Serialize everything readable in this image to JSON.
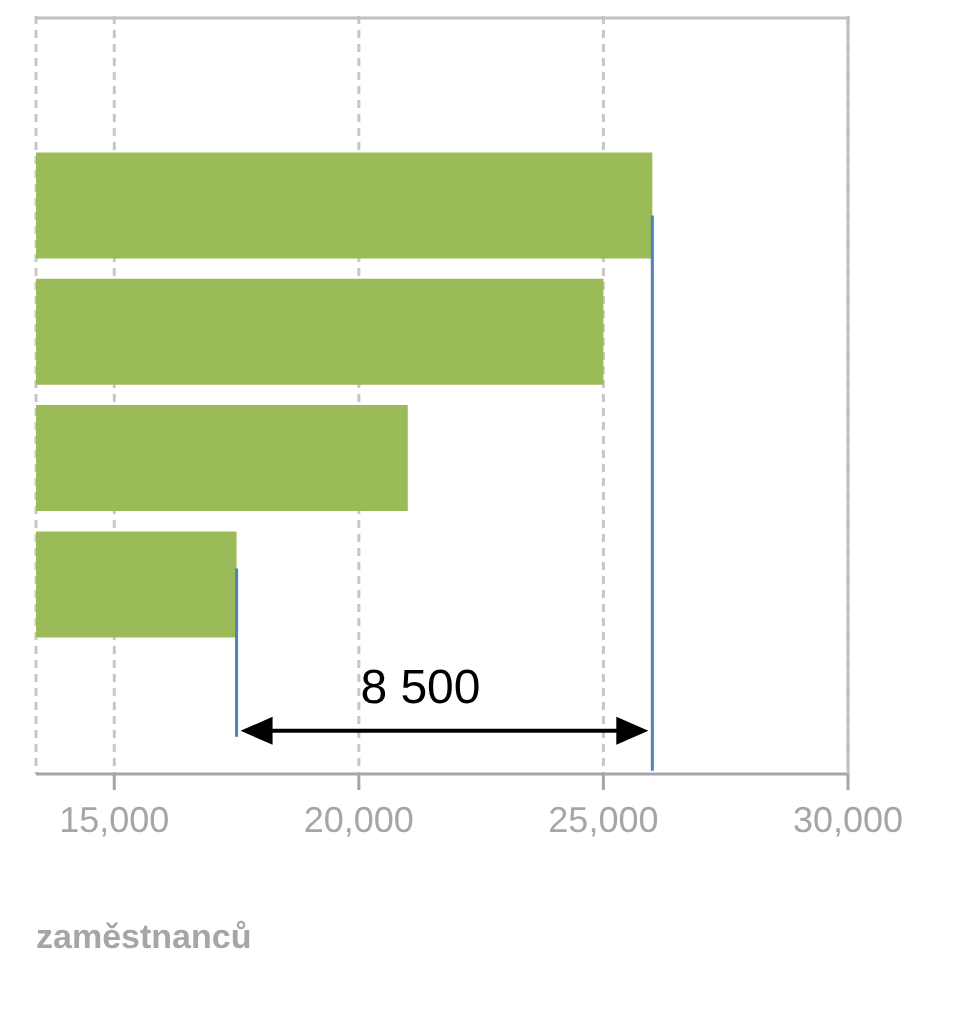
{
  "chart_data": {
    "type": "bar",
    "orientation": "horizontal",
    "categories": [
      null,
      null,
      null,
      null,
      null,
      null
    ],
    "values": [
      null,
      26000,
      25000,
      21000,
      17500,
      null
    ],
    "color": "#9bbb59",
    "xlim": [
      13400,
      30000
    ],
    "xticks": [
      {
        "value": 15000,
        "label": "15,000"
      },
      {
        "value": 20000,
        "label": "20,000"
      },
      {
        "value": 25000,
        "label": "25,000"
      },
      {
        "value": 30000,
        "label": "30,000"
      }
    ],
    "grid": "x",
    "ref_lines": [
      {
        "axis": "x",
        "value": 26000,
        "color": "#4f81bd"
      },
      {
        "axis": "x",
        "value": 17500,
        "color": "#4f81bd"
      }
    ],
    "xlabel": "zaměstnanců",
    "annotations": [
      "8 500"
    ]
  }
}
